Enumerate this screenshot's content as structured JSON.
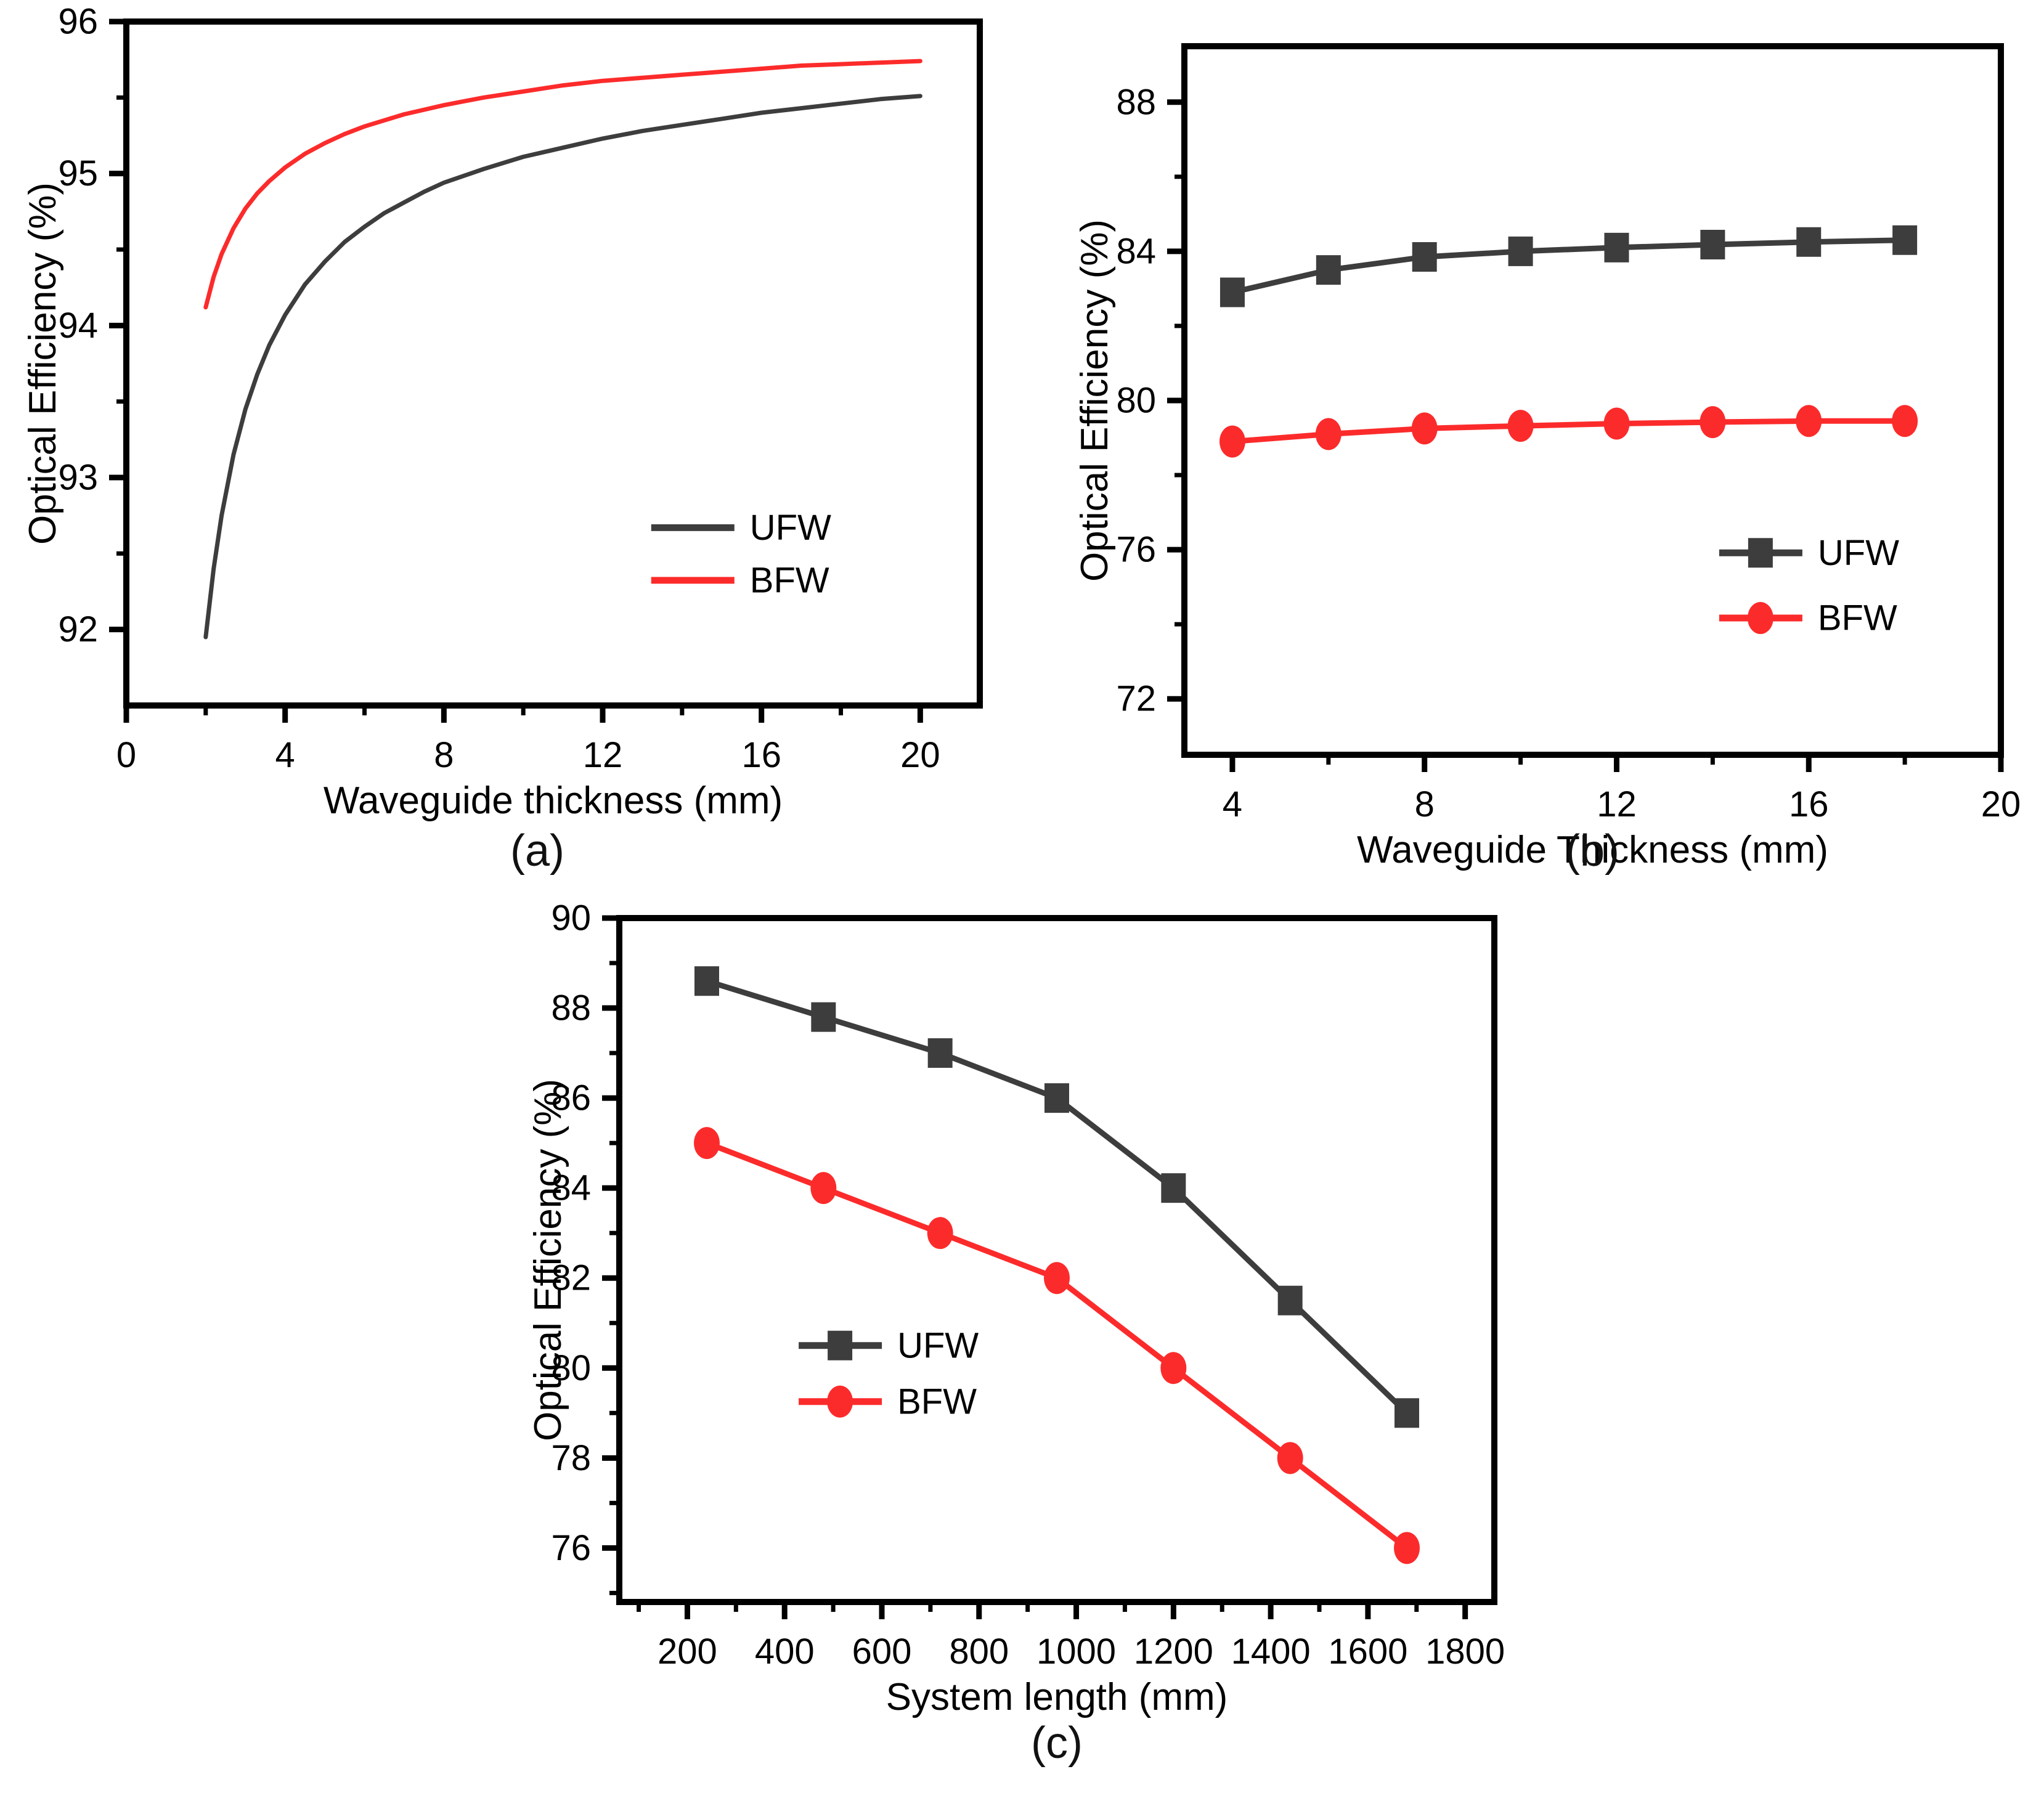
{
  "figure": {
    "background": "#ffffff",
    "axis_color": "#000000",
    "series_colors": {
      "UFW": "#3d3d3d",
      "BFW": "#fc2b2b"
    }
  },
  "chart_data": [
    {
      "id": "a",
      "type": "line",
      "caption": "(a)",
      "title": "",
      "xlabel": "Waveguide thickness (mm)",
      "ylabel": "Optical Efficiency (%)",
      "xlim": [
        0,
        21.5
      ],
      "ylim": [
        91.5,
        96
      ],
      "xticks": [
        0,
        4,
        8,
        12,
        16,
        20
      ],
      "xminorticks": [
        2,
        6,
        10,
        14,
        18
      ],
      "yticks": [
        92,
        93,
        94,
        95,
        96
      ],
      "yminorticks": [
        92.5,
        93.5,
        94.5,
        95.5
      ],
      "grid": false,
      "legend": {
        "items": [
          "UFW",
          "BFW"
        ],
        "location": "inside lower right"
      },
      "series": [
        {
          "name": "UFW",
          "color": "#3d3d3d",
          "marker": "none",
          "points": [
            [
              2,
              91.95
            ],
            [
              2.2,
              92.4
            ],
            [
              2.4,
              92.75
            ],
            [
              2.7,
              93.15
            ],
            [
              3,
              93.45
            ],
            [
              3.3,
              93.68
            ],
            [
              3.6,
              93.87
            ],
            [
              4,
              94.07
            ],
            [
              4.5,
              94.27
            ],
            [
              5,
              94.42
            ],
            [
              5.5,
              94.55
            ],
            [
              6,
              94.65
            ],
            [
              6.5,
              94.74
            ],
            [
              7,
              94.81
            ],
            [
              7.5,
              94.88
            ],
            [
              8,
              94.94
            ],
            [
              9,
              95.03
            ],
            [
              10,
              95.11
            ],
            [
              11,
              95.17
            ],
            [
              12,
              95.23
            ],
            [
              13,
              95.28
            ],
            [
              14,
              95.32
            ],
            [
              15,
              95.36
            ],
            [
              16,
              95.4
            ],
            [
              17,
              95.43
            ],
            [
              18,
              95.46
            ],
            [
              19,
              95.49
            ],
            [
              20,
              95.51
            ]
          ]
        },
        {
          "name": "BFW",
          "color": "#fc2b2b",
          "marker": "none",
          "points": [
            [
              2,
              94.12
            ],
            [
              2.2,
              94.32
            ],
            [
              2.4,
              94.47
            ],
            [
              2.7,
              94.64
            ],
            [
              3,
              94.77
            ],
            [
              3.3,
              94.87
            ],
            [
              3.6,
              94.95
            ],
            [
              4,
              95.04
            ],
            [
              4.5,
              95.13
            ],
            [
              5,
              95.2
            ],
            [
              5.5,
              95.26
            ],
            [
              6,
              95.31
            ],
            [
              6.5,
              95.35
            ],
            [
              7,
              95.39
            ],
            [
              7.5,
              95.42
            ],
            [
              8,
              95.45
            ],
            [
              9,
              95.5
            ],
            [
              10,
              95.54
            ],
            [
              11,
              95.58
            ],
            [
              12,
              95.61
            ],
            [
              13,
              95.63
            ],
            [
              14,
              95.65
            ],
            [
              15,
              95.67
            ],
            [
              16,
              95.69
            ],
            [
              17,
              95.71
            ],
            [
              18,
              95.72
            ],
            [
              19,
              95.73
            ],
            [
              20,
              95.74
            ]
          ]
        }
      ]
    },
    {
      "id": "b",
      "type": "line",
      "caption": "(b)",
      "title": "",
      "xlabel": "Waveguide Thickness (mm)",
      "ylabel": "Optical Efficiency (%)",
      "xlim": [
        3,
        20
      ],
      "ylim": [
        70.5,
        89.5
      ],
      "xticks": [
        4,
        8,
        12,
        16,
        20
      ],
      "xminorticks": [
        6,
        10,
        14,
        18
      ],
      "yticks": [
        72,
        76,
        80,
        84,
        88
      ],
      "yminorticks": [
        74,
        78,
        82,
        86
      ],
      "grid": false,
      "legend": {
        "items": [
          "UFW",
          "BFW"
        ],
        "location": "inside lower right"
      },
      "series": [
        {
          "name": "UFW",
          "color": "#3d3d3d",
          "marker": "square",
          "points": [
            [
              4,
              82.9
            ],
            [
              6,
              83.5
            ],
            [
              8,
              83.85
            ],
            [
              10,
              84.0
            ],
            [
              12,
              84.1
            ],
            [
              14,
              84.18
            ],
            [
              16,
              84.25
            ],
            [
              18,
              84.3
            ]
          ]
        },
        {
          "name": "BFW",
          "color": "#fc2b2b",
          "marker": "circle",
          "points": [
            [
              4,
              78.9
            ],
            [
              6,
              79.1
            ],
            [
              8,
              79.25
            ],
            [
              10,
              79.32
            ],
            [
              12,
              79.38
            ],
            [
              14,
              79.42
            ],
            [
              16,
              79.45
            ],
            [
              18,
              79.45
            ]
          ]
        }
      ]
    },
    {
      "id": "c",
      "type": "line",
      "caption": "(c)",
      "title": "",
      "xlabel": "System length (mm)",
      "ylabel": "Optical Efficiency (%)",
      "xlim": [
        60,
        1860
      ],
      "ylim": [
        74.8,
        90
      ],
      "xticks": [
        200,
        400,
        600,
        800,
        1000,
        1200,
        1400,
        1600,
        1800
      ],
      "xminorticks": [
        100,
        300,
        500,
        700,
        900,
        1100,
        1300,
        1500,
        1700
      ],
      "yticks": [
        76,
        78,
        80,
        82,
        84,
        86,
        88,
        90
      ],
      "yminorticks": [
        75,
        77,
        79,
        81,
        83,
        85,
        87,
        89
      ],
      "grid": false,
      "legend": {
        "items": [
          "UFW",
          "BFW"
        ],
        "location": "inside left center"
      },
      "series": [
        {
          "name": "UFW",
          "color": "#3d3d3d",
          "marker": "square",
          "points": [
            [
              240,
              88.6
            ],
            [
              480,
              87.8
            ],
            [
              720,
              87.0
            ],
            [
              960,
              86.0
            ],
            [
              1200,
              84.0
            ],
            [
              1440,
              81.5
            ],
            [
              1680,
              79.0
            ]
          ]
        },
        {
          "name": "BFW",
          "color": "#fc2b2b",
          "marker": "circle",
          "points": [
            [
              240,
              85.0
            ],
            [
              480,
              84.0
            ],
            [
              720,
              83.0
            ],
            [
              960,
              82.0
            ],
            [
              1200,
              80.0
            ],
            [
              1440,
              78.0
            ],
            [
              1680,
              76.0
            ]
          ]
        }
      ]
    }
  ]
}
